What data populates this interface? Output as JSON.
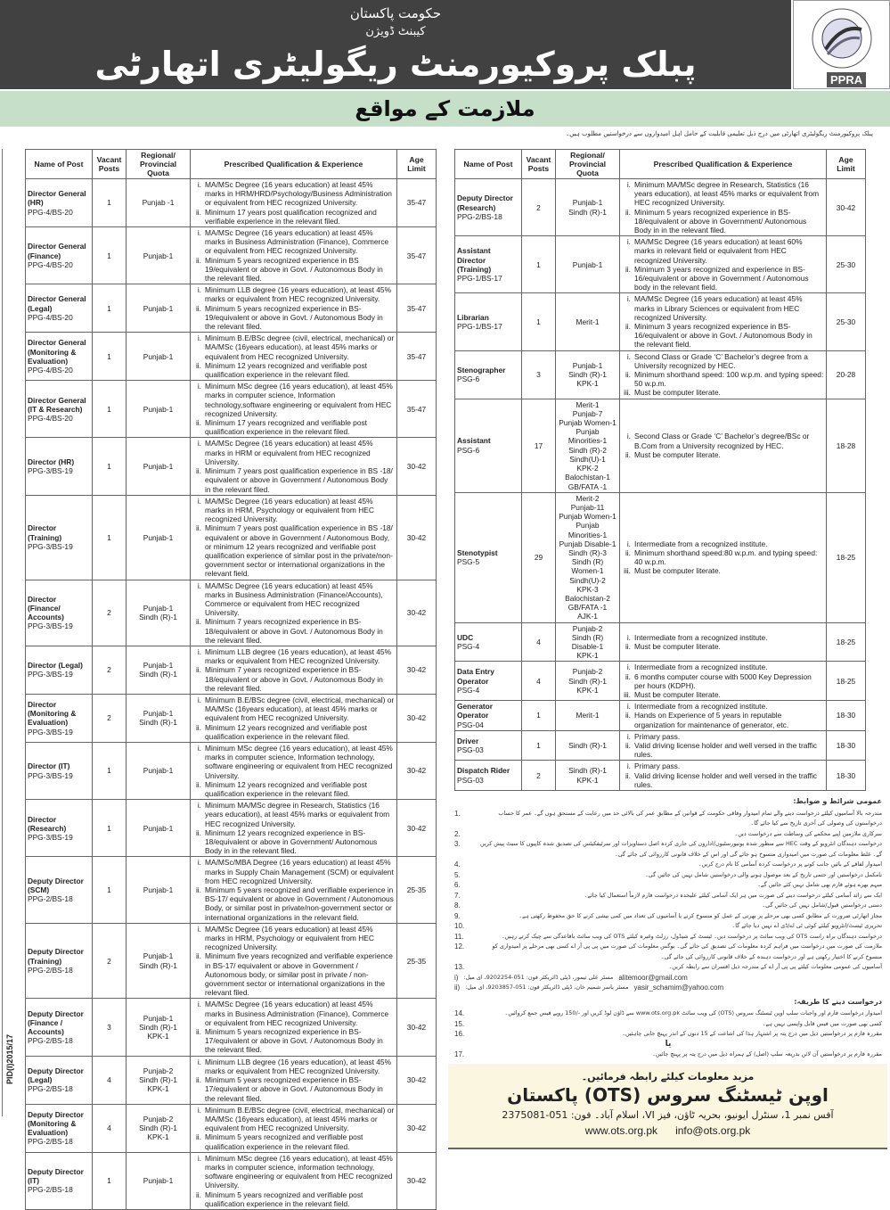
{
  "header": {
    "govt": "حکومت پاکستان",
    "division": "کیبنٹ ڈویژن",
    "authority": "پبلک پروکیورمنٹ ریگولیٹری اتھارٹی",
    "logo_text": "PPRA",
    "logo_ring": "TRANSPARENCY EFFICIENCY INTEGRITY VALUE FOR MONEY"
  },
  "banner": "ملازمت کے مواقع",
  "intro": "پبلک پروکیورمنٹ ریگولیٹری اتھارٹی میں درج ذیل تعلیمی قابلیت کے حامل اہل امیدواروں سے درخواستیں مطلوب ہیں۔",
  "pid": "PID(I)2015/17",
  "columns": {
    "name": "Name of Post",
    "vacant": "Vacant Posts",
    "quota": "Regional/ Provincial Quota",
    "qual": "Prescribed Qualification & Experience",
    "age": "Age Limit"
  },
  "left_table": [
    {
      "title": [
        "Director General",
        "(HR)"
      ],
      "grade": "PPG-4/BS-20",
      "vacant": "1",
      "quota": [
        "Punjab -1"
      ],
      "qual": [
        "MA/MSc Degree (16 years education) at least 45% marks in HRM/HRD/Psychology/Business Administration or equivalent from HEC recognized University.",
        "Minimum 17 years post qualification recognized and verifiable experience in the relevant filed."
      ],
      "age": "35-47"
    },
    {
      "title": [
        "Director General",
        "(Finance)"
      ],
      "grade": "PPG-4/BS-20",
      "vacant": "1",
      "quota": [
        "Punjab-1"
      ],
      "qual": [
        "MA/MSc Degree (16 years education) at least 45% marks in Business Administration (Finance), Commerce or equivalent from HEC recognized University.",
        "Minimum 5 years recognized experience in BS 19/equivalent or above in Govt. / Autonomous Body in the relevant filed."
      ],
      "age": "35-47"
    },
    {
      "title": [
        "Director General",
        "(Legal)"
      ],
      "grade": "PPG-4/BS-20",
      "vacant": "1",
      "quota": [
        "Punjab-1"
      ],
      "qual": [
        "Minimum LLB degree (16 years education), at least 45% marks or equivalent from HEC recognized University.",
        "Minimum 5 years recognized experience in BS-19/equivalent or above in Govt. / Autonomous Body in the relevant filed."
      ],
      "age": "35-47"
    },
    {
      "title": [
        "Director General",
        "(Monitoring &",
        "Evaluation)"
      ],
      "grade": "PPG-4/BS-20",
      "vacant": "1",
      "quota": [
        "Punjab-1"
      ],
      "qual": [
        "Minimum B.E/BSc degree (civil, electrical, mechanical) or MA/MSc (16years education), at least 45% marks or equivalent from HEC recognized University.",
        "Minimum 12 years recognized and verifiable post qualification experience in the relevant filed."
      ],
      "age": "35-47"
    },
    {
      "title": [
        "Director General",
        "(IT & Research)"
      ],
      "grade": "PPG-4/BS-20",
      "vacant": "1",
      "quota": [
        "Punjab-1"
      ],
      "qual": [
        "Minimum MSc degree (16 years education), at least 45% marks in computer science, Information technology,software engineering or equivalent from HEC recognized University.",
        "Minimum 17 years recognized and verifiable post qualification experience in the relevant filed."
      ],
      "age": "35-47"
    },
    {
      "title": [
        "Director (HR)"
      ],
      "grade": "PPG-3/BS-19",
      "vacant": "1",
      "quota": [
        "Punjab-1"
      ],
      "qual": [
        "MA/MSc Degree (16 years education) at least 45% marks in HRM or equivalent from HEC recognized University.",
        "Minimum 7 years post qualification experience in BS -18/ equivalent or above in Government / Autonomous Body in the relevant filed."
      ],
      "age": "30-42"
    },
    {
      "title": [
        "Director (Training)"
      ],
      "grade": "PPG-3/BS-19",
      "vacant": "1",
      "quota": [
        "Punjab-1"
      ],
      "qual": [
        "MA/MSc Degree (16 years education) at least 45% marks in HRM, Psychology or equivalent from HEC recognized University.",
        "Minimum 7 years post qualification experience in BS -18/ equivalent or above in Government / Autonomous Body, or minimum 12 years recognized and verifiable post qualification experience of similar post in the private/non- government sector or international organizations in the relevant field."
      ],
      "age": "30-42"
    },
    {
      "title": [
        "Director",
        "(Finance/",
        "Accounts)"
      ],
      "grade": "PPG-3/BS-19",
      "vacant": "2",
      "quota": [
        "Punjab-1",
        "Sindh (R)-1"
      ],
      "qual": [
        "MA/MSc Degree (16 years education) at least 45% marks in Business Administration (Finance/Accounts), Commerce or equivalent from HEC recognized University.",
        "Minimum 7 years recognized experience in BS-18/equivalent or above in Govt. / Autonomous Body in the relevant filed."
      ],
      "age": "30-42"
    },
    {
      "title": [
        "Director  (Legal)"
      ],
      "grade": "PPG-3/BS-19",
      "vacant": "2",
      "quota": [
        "Punjab-1",
        "Sindh (R)-1"
      ],
      "qual": [
        "Minimum LLB degree (16 years education), at least 45% marks or equivalent from HEC recognized University.",
        "Minimum 7 years recognized experience in BS-18/equivalent or above in Govt. / Autonomous Body in the relevant filed."
      ],
      "age": "30-42"
    },
    {
      "title": [
        "Director",
        "(Monitoring &",
        "Evaluation)"
      ],
      "grade": "PPG-3/BS-19",
      "vacant": "2",
      "quota": [
        "Punjab-1",
        "Sindh (R)-1"
      ],
      "qual": [
        "Minimum B.E/BSc degree (civil, electrical, mechanical) or MA/MSc (16years education), at least 45% marks or equivalent from HEC recognized University.",
        "Minimum 12 years recognized and verifiable post qualification experience in the relevant filed."
      ],
      "age": "30-42"
    },
    {
      "title": [
        "Director (IT)"
      ],
      "grade": "PPG-3/BS-19",
      "vacant": "1",
      "quota": [
        "Punjab-1"
      ],
      "qual": [
        "Minimum MSc degree (16 years education), at least 45% marks in computer science, Information technology, software engineering or equivalent from HEC recognized University.",
        "Minimum 12 years recognized and verifiable post qualification experience in the relevant filed."
      ],
      "age": "30-42"
    },
    {
      "title": [
        "Director",
        "(Research)"
      ],
      "grade": "PPG-3/BS-19",
      "vacant": "1",
      "quota": [
        "Punjab-1"
      ],
      "qual": [
        "Minimum MA/MSc degree in Research, Statistics (16 years education), at least 45% marks or equivalent from HEC recognized University.",
        "Minimum 12 years recognized experience in BS-18/equivalent or above in Government/ Autonomous Body in in the relevant filed."
      ],
      "age": "30-42"
    },
    {
      "title": [
        "Deputy Director",
        "(SCM)"
      ],
      "grade": "PPG-2/BS-18",
      "vacant": "1",
      "quota": [
        "Punjab-1"
      ],
      "qual": [
        "MA/MSc/MBA Degree (16 years education) at least 45% marks in Supply Chain Management (SCM) or equivalent from HEC recognized University.",
        "Minimum 5 years recognized and verifiable experience in BS-17/ equivalent or above in Government / Autonomous Body, or similar post in private/non-government sector or international organizations  in the relevant field."
      ],
      "age": "25-35"
    },
    {
      "title": [
        "Deputy Director",
        "(Training)"
      ],
      "grade": "PPG-2/BS-18",
      "vacant": "2",
      "quota": [
        "Punjab-1",
        "Sindh (R)-1"
      ],
      "qual": [
        "MA/MSc Degree (16 years education) at least 45% marks in HRM, Psychology or equivalent from HEC recognized University.",
        "Minimum five years recognized and verifiable experience in BS-17/ equivalent or above in Government / Autonomous body, or similar post in private / non-government sector or international organizations in the relevant filed."
      ],
      "age": "25-35"
    },
    {
      "title": [
        "Deputy Director",
        "(Finance /",
        "Accounts)"
      ],
      "grade": "PPG-2/BS-18",
      "vacant": "3",
      "quota": [
        "Punjab-1",
        "Sindh (R)-1",
        "KPK-1"
      ],
      "qual": [
        "MA/MSc Degree (16 years education) at least 45% marks in Business Administration (Finance), Commerce or equivalent from HEC recognized University.",
        "Minimum 5 years recognized experience in BS-17/equivalent or above in Govt. / Autonomous Body in the relevant filed."
      ],
      "age": "30-42"
    },
    {
      "title": [
        "Deputy Director",
        "(Legal)"
      ],
      "grade": "PPG-2/BS-18",
      "vacant": "4",
      "quota": [
        "Punjab-2",
        "Sindh (R)-1",
        "KPK-1"
      ],
      "qual": [
        "Minimum LLB degree (16 years education), at least 45% marks or equivalent from HEC recognized University.",
        "Minimum 5 years recognized experience in BS-17/equivalent or above in Govt. / Autonomous Body in the relevant filed."
      ],
      "age": "30-42"
    },
    {
      "title": [
        "Deputy Director",
        "(Monitoring &",
        "Evaluation)"
      ],
      "grade": "PPG-2/BS-18",
      "vacant": "4",
      "quota": [
        "Punjab-2",
        "Sindh (R)-1",
        "KPK-1"
      ],
      "qual": [
        "Minimum B.E/BSc degree (civil, electrical, mechanical) or MA/MSc (16years education), at least 45% marks or equivalent from HEC recognized University.",
        "Minimum 5 years recognized and verifiable post qualification experience in the relevant filed."
      ],
      "age": "30-42"
    },
    {
      "title": [
        "Deputy Director",
        "(IT)"
      ],
      "grade": "PPG-2/BS-18",
      "vacant": "1",
      "quota": [
        "Punjab-1"
      ],
      "qual": [
        "Minimum MSc degree (16 years education), at least 45% marks in computer science, information technology, software engineering or equivalent from HEC recognized University.",
        "Minimum 5 years recognized and verifiable post qualification experience in the relevant field."
      ],
      "age": "30-42"
    }
  ],
  "right_table": [
    {
      "title": [
        "Deputy Director",
        "(Research)"
      ],
      "grade": "PPG-2/BS-18",
      "vacant": "2",
      "quota": [
        "Punjab-1",
        "Sindh (R)-1"
      ],
      "qual": [
        "Minimum MA/MSc degree in Research, Statistics (16 years education), at least 45% marks or equivalent from HEC recognized University.",
        "Minimum 5 years recognized experience in BS-18/equivalent or above in Government/ Autonomous Body in in the relevant filed."
      ],
      "age": "30-42"
    },
    {
      "title": [
        "Assistant Director",
        "(Training)"
      ],
      "grade": "PPG-1/BS-17",
      "vacant": "1",
      "quota": [
        "Punjab-1"
      ],
      "qual": [
        "MA/MSc Degree (16 years education) at least 60% marks in relevant field or equivalent from HEC recognized University.",
        "Minimum 3 years recognized and experience in BS-16/equivalent or above in Government / Autonomous body in the relevant field."
      ],
      "age": "25-30"
    },
    {
      "title": [
        "Librarian"
      ],
      "grade": "PPG-1/BS-17",
      "vacant": "1",
      "quota": [
        "Merit-1"
      ],
      "qual": [
        "MA/MSc Degree (16 years education) at least 45% marks in Library Sciences or equivalent from HEC recognized University.",
        "Minimum 3 years recognized experience in BS-16/equivalent or above in Govt. / Autonomous Body in the relevant field."
      ],
      "age": "25-30"
    },
    {
      "title": [
        "Stenographer"
      ],
      "grade": "PSG-6",
      "vacant": "3",
      "quota": [
        "Punjab-1",
        "Sindh (R)-1",
        "KPK-1"
      ],
      "qual": [
        "Second Class or Grade ‘C’ Bachelor’s degree from a University recognized by HEC.",
        "Minimum shorthand speed: 100 w.p.m. and typing speed: 50 w.p.m.",
        "Must be computer literate."
      ],
      "age": "20-28"
    },
    {
      "title": [
        "Assistant"
      ],
      "grade": "PSG-6",
      "vacant": "17",
      "quota": [
        "Merit-1",
        "Punjab-7",
        "Punjab Women-1",
        "Punjab Minorities-1",
        "Sindh (R)-2",
        "Sindh(U)-1",
        "KPK-2",
        "Balochistan-1",
        "GB/FATA -1"
      ],
      "qual": [
        "Second Class  or Grade ‘C’ Bachelor’s degree/BSc or B.Com from a University recognized by HEC.",
        "Must be computer literate."
      ],
      "age": "18-28"
    },
    {
      "title": [
        "Stenotypist"
      ],
      "grade": "PSG-5",
      "vacant": "29",
      "quota": [
        "Merit-2",
        "Punjab-11",
        "Punjab Women-1",
        "Punjab Minorities-1",
        "Punjab Disable-1",
        "Sindh (R)-3",
        "Sindh (R) Women-1",
        "Sindh(U)-2",
        "KPK-3",
        "Balochistan-2",
        "GB/FATA -1",
        "AJK-1"
      ],
      "qual": [
        "Intermediate from a recognized institute.",
        "Minimum shorthand speed:80 w.p.m. and typing speed: 40 w.p.m.",
        "Must be computer literate."
      ],
      "age": "18-25"
    },
    {
      "title": [
        "UDC"
      ],
      "grade": "PSG-4",
      "vacant": "4",
      "quota": [
        "Punjab-2",
        "Sindh (R) Disable-1",
        "KPK-1"
      ],
      "qual": [
        "Intermediate from a recognized institute.",
        "Must be computer literate."
      ],
      "age": "18-25"
    },
    {
      "title": [
        "Data Entry",
        "Operator"
      ],
      "grade": "PSG-4",
      "vacant": "4",
      "quota": [
        "Punjab-2",
        "Sindh (R)-1",
        "KPK-1"
      ],
      "qual": [
        "Intermediate from a recognized institute.",
        "6 months computer course with 5000 Key Depression per hours (KDPH).",
        "Must be computer literate."
      ],
      "age": "18-25"
    },
    {
      "title": [
        "Generator",
        "Operator"
      ],
      "grade": "PSG-04",
      "vacant": "1",
      "quota": [
        "Merit-1"
      ],
      "qual": [
        "Intermediate from a recognized institute.",
        "Hands on Experience of 5 years in reputable organization for maintenance of generator, etc."
      ],
      "age": "18-30"
    },
    {
      "title": [
        "Driver"
      ],
      "grade": "PSG-03",
      "vacant": "1",
      "quota": [
        "Sindh (R)-1"
      ],
      "qual": [
        "Primary pass.",
        "Valid driving license holder and well versed in the traffic rules."
      ],
      "age": "18-30"
    },
    {
      "title": [
        "Dispatch Rider"
      ],
      "grade": "PSG-03",
      "vacant": "2",
      "quota": [
        "Sindh (R)-1",
        "KPK-1"
      ],
      "qual": [
        "Primary pass.",
        "Valid driving license holder and well versed in the traffic rules."
      ],
      "age": "18-30"
    }
  ],
  "numerals": [
    "i.",
    "ii.",
    "iii."
  ],
  "terms": {
    "heading": "عمومی شرائط و ضوابط:",
    "items": [
      {
        "n": "1.",
        "t": "مندرجہ بالا آسامیوں کیلئے درخواست دینے والے تمام امیدوار وفاقی حکومت کے قوانین کے مطابق عمر کی بالائی حد میں رعایت کے مستحق ہوں گے۔ عمر کا حساب درخواستوں کی وصولی کی آخری تاریخ سے کیا جائے گا۔"
      },
      {
        "n": "2.",
        "t": "سرکاری ملازمین اپنے محکمے کی وساطت سے درخواست دیں۔"
      },
      {
        "n": "3.",
        "t": "درخواست دہندگان انٹرویو کے وقت HEC سے منظور شدہ یونیورسٹیوں/اداروں کی جاری کردہ اصل دستاویزات اور سرٹیفکیٹس کی تصدیق شدہ کاپیوں کا سیٹ پیش کریں گے۔ غلط معلومات کی صورت میں امیدواری منسوخ ہو جائے گی اور اس کے خلاف قانونی کارروائی کی جائے گی۔"
      },
      {
        "n": "4.",
        "t": "امیدوار لفافے کے بائیں جانب کونے پر درخواست کردہ آسامی کا نام درج کریں۔"
      },
      {
        "n": "5.",
        "t": "نامکمل درخواستیں اور حتمی تاریخ کے بعد موصول ہونے والی درخواستیں شامل نہیں کی جائیں گی۔"
      },
      {
        "n": "6.",
        "t": "مبہم بھرے ہوئے فارم بھی شامل نہیں کئے جائیں گے۔"
      },
      {
        "n": "7.",
        "t": "ایک سے زائد آسامی کیلئے درخواست دینے کی صورت میں ہر ایک آسامی کیلئے علیحدہ درخواست فارم لازماً استعمال کیا جائے۔"
      },
      {
        "n": "8.",
        "t": "دستی درخواستیں قبول/شامل نہیں کی جائیں گی۔"
      },
      {
        "n": "9.",
        "t": "مجاز اتھارٹی ضرورت کے مطابق کسی بھی مرحلے پر بھرتی کے عمل کو منسوخ کرنے یا آسامیوں کی تعداد میں کمی بیشی کرنے کا حق محفوظ رکھتی ہے۔"
      },
      {
        "n": "10.",
        "t": "تحریری ٹیسٹ/انٹرویو کیلئے کوئی ٹی اے/ڈی اے نہیں دیا جائے گا۔"
      },
      {
        "n": "11.",
        "t": "درخواست دہندگان براہ راست OTS کی ویب سائٹ پر درخواست دیں۔ ٹیسٹ کے شیڈول، رزلٹ وغیرہ کیلئے OTS کی ویب سائٹ باقاعدگی سے چیک کرتے رہیں۔"
      },
      {
        "n": "12.",
        "t": "ملازمت کی صورت میں درخواست میں فراہم کردہ معلومات کی تصدیق کی جائے گی۔ بوگس معلومات کی صورت میں پی پی آر اے کسی بھی مرحلے پر امیدواری کو منسوخ کرنے کا اختیار رکھتی ہے اور درخواست دہندہ کے خلاف قانونی کارروائی کی جائے گی۔"
      },
      {
        "n": "13.",
        "t": "آسامیوں کی عمومی معلومات کیلئے پی پی آر اے کے مندرجہ ذیل افسران سے رابطہ کریں۔"
      }
    ],
    "contacts": [
      {
        "n": "i)",
        "t": "مسٹر علی تیمور، ڈپٹی ڈائریکٹر فون: 051-9202254، ای میل:",
        "email": "alitemoor@gmail.com"
      },
      {
        "n": "ii)",
        "t": "مسٹر یاسر شمیم خان، ڈپٹی ڈائریکٹر فون: 051-9203857، ای میل:",
        "email": "yasir_schamim@yahoo.com"
      }
    ],
    "apply_heading": "درخواست دینے کا طریقہ:",
    "apply": [
      {
        "n": "14.",
        "t": "امیدوار درخواست فارم اور واجبات سلپ اوپن ٹیسٹنگ سروس (OTS) کی ویب سائٹ www.ots.org.pk سے ڈاؤن لوڈ کریں اور -/150 روپے فیس جمع کروائیں۔"
      },
      {
        "n": "15.",
        "t": "کسی بھی صورت میں فیس قابل واپسی نہیں ہے۔"
      },
      {
        "n": "16.",
        "t": "مقررہ فارم پر درخواستیں ذیل میں درج پتہ پر اشتہار ہذا کی اشاعت کے 15 دنوں کے اندر پہنچ جانی چاہئیں۔"
      }
    ],
    "or": "یا",
    "last": {
      "n": "17.",
      "t": "مقررہ فارم پر درخواستیں آن لائن بذریعہ سلپ (اصل) کے ہمراہ ذیل میں درج پتہ پر پہنچ جائیں۔"
    }
  },
  "footer": {
    "contact_line": "مزید معلومات کیلئے رابطہ فرمائیں۔",
    "org": "اوپن ٹیسٹنگ سروس (OTS) پاکستان",
    "address": "آفس نمبر 1، سنٹرل ایونیو، بحریہ ٹاؤن، فیز VI، اسلام آباد۔ فون: 051-2375081",
    "website": "www.ots.org.pk",
    "email": "info@ots.org.pk"
  },
  "colors": {
    "header_bg": "#414141",
    "banner_bg": "#c6dfc8",
    "footer_bg": "#fbf6e0"
  }
}
